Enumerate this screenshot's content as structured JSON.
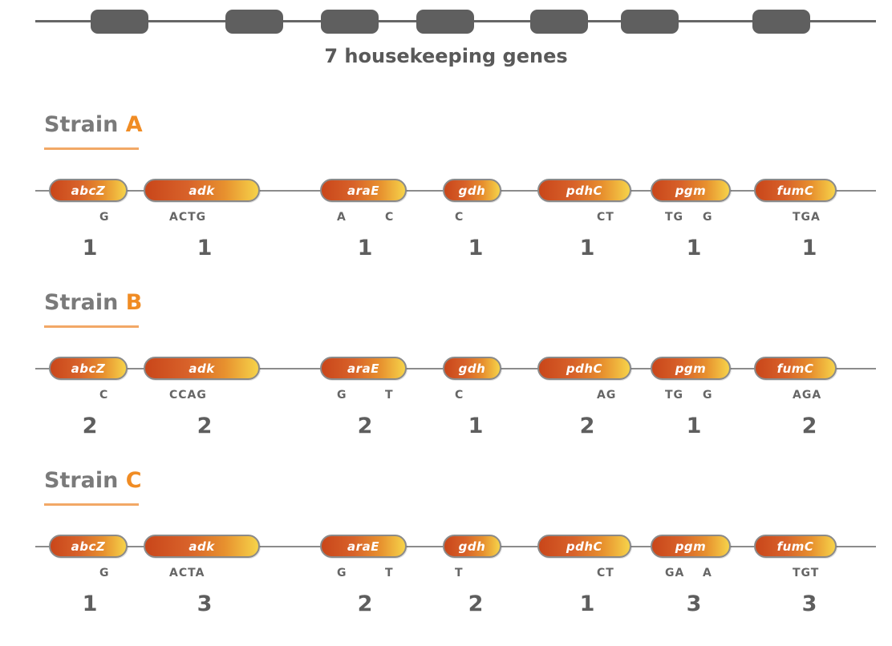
{
  "header": {
    "caption": "7 housekeeping genes",
    "gene_count": 7
  },
  "strain_word": "Strain",
  "genes": [
    "abcZ",
    "adk",
    "araE",
    "gdh",
    "pdhC",
    "pgm",
    "fumC"
  ],
  "strains": [
    {
      "letter": "A",
      "snps": [
        "G",
        "ACTG",
        "A",
        "C",
        "C",
        "CT",
        "TG",
        "G",
        "TGA"
      ],
      "alleles": [
        "1",
        "1",
        "1",
        "1",
        "1",
        "1",
        "1"
      ]
    },
    {
      "letter": "B",
      "snps": [
        "C",
        "CCAG",
        "G",
        "T",
        "C",
        "AG",
        "TG",
        "G",
        "AGA"
      ],
      "alleles": [
        "2",
        "2",
        "2",
        "1",
        "2",
        "1",
        "2"
      ]
    },
    {
      "letter": "C",
      "snps": [
        "G",
        "ACTA",
        "G",
        "T",
        "T",
        "CT",
        "GA",
        "A",
        "TGT"
      ],
      "alleles": [
        "1",
        "3",
        "2",
        "2",
        "1",
        "3",
        "3"
      ]
    }
  ],
  "colors": {
    "gene_gradient_start": "#c9461a",
    "gene_gradient_end": "#f6d34a",
    "strain_letter": "#f08c24",
    "chromosome_gene": "#5f5f5f"
  }
}
